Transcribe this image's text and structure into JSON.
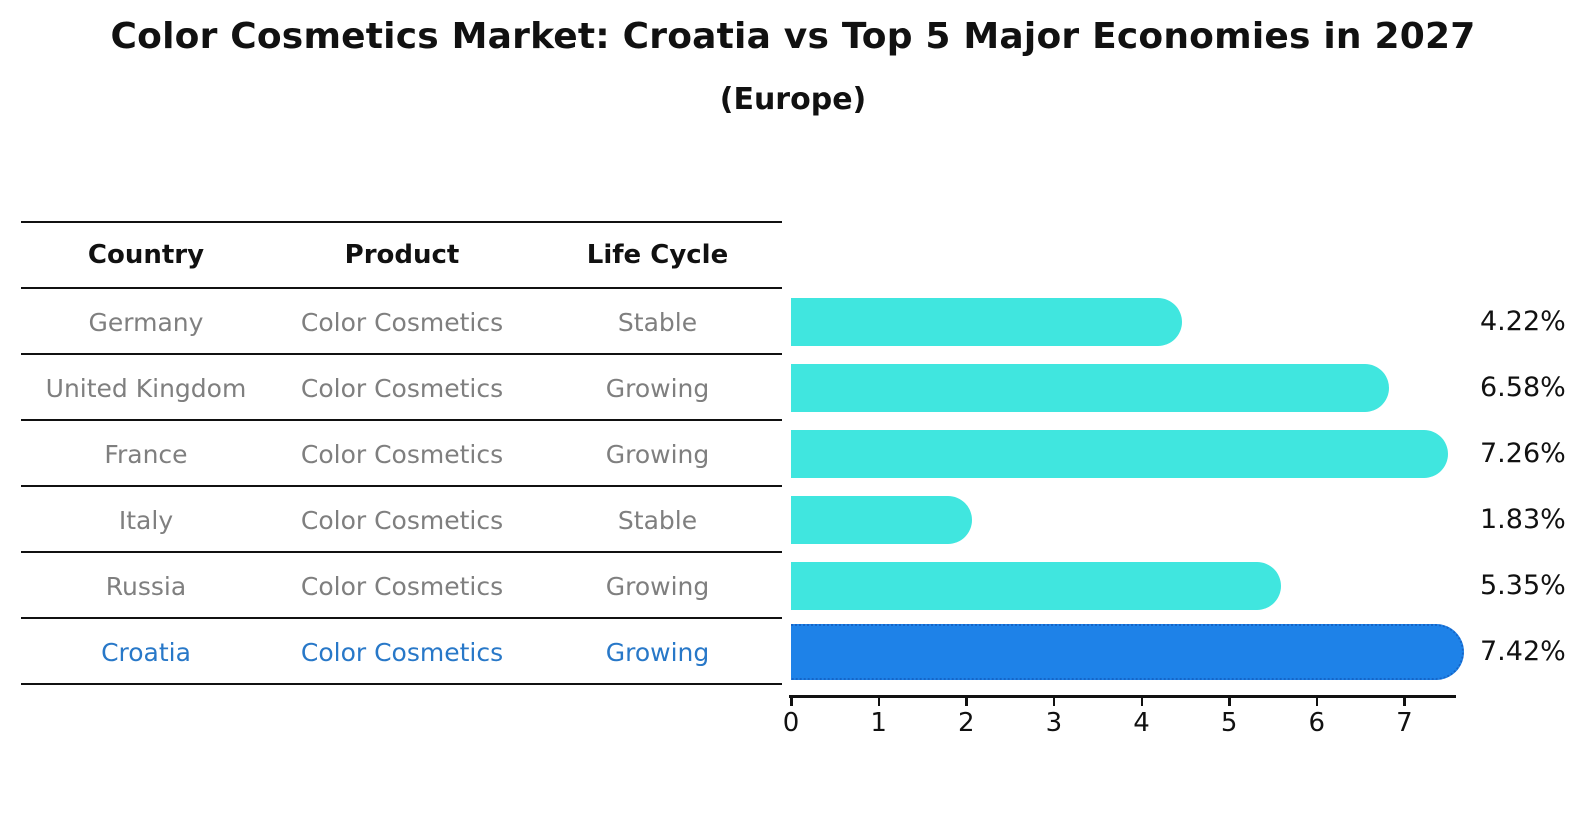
{
  "header": {
    "title": "Color Cosmetics Market: Croatia vs Top 5 Major Economies in 2027",
    "subtitle": "(Europe)"
  },
  "colors": {
    "bar": "#40E6DF",
    "highlight_bar": "#1E82E8",
    "highlight_bar_border": "#1565C8",
    "highlight_text": "#2878C8",
    "row_text": "#7f7f7f",
    "ink": "#111111"
  },
  "table": {
    "headers": [
      "Country",
      "Product",
      "Life Cycle"
    ],
    "rows": [
      {
        "country": "Germany",
        "product": "Color Cosmetics",
        "life_cycle": "Stable"
      },
      {
        "country": "United Kingdom",
        "product": "Color Cosmetics",
        "life_cycle": "Growing"
      },
      {
        "country": "France",
        "product": "Color Cosmetics",
        "life_cycle": "Growing"
      },
      {
        "country": "Italy",
        "product": "Color Cosmetics",
        "life_cycle": "Stable"
      },
      {
        "country": "Russia",
        "product": "Color Cosmetics",
        "life_cycle": "Growing"
      },
      {
        "country": "Croatia",
        "product": "Color Cosmetics",
        "life_cycle": "Growing"
      }
    ]
  },
  "chart_data": {
    "type": "bar",
    "orientation": "horizontal",
    "title": "Color Cosmetics Market: Croatia vs Top 5 Major Economies in 2027 (Europe)",
    "categories": [
      "Germany",
      "United Kingdom",
      "France",
      "Italy",
      "Russia",
      "Croatia"
    ],
    "values": [
      4.22,
      6.58,
      7.26,
      1.83,
      5.35,
      7.42
    ],
    "value_labels": [
      "4.22%",
      "6.58%",
      "7.26%",
      "1.83%",
      "5.35%",
      "7.42%"
    ],
    "unit": "%",
    "highlight_index": 5,
    "highlight_category": "Croatia",
    "xlim": [
      0,
      7.6
    ],
    "xticks": [
      0,
      1,
      2,
      3,
      4,
      5,
      6,
      7
    ],
    "grid": false,
    "legend": false
  }
}
